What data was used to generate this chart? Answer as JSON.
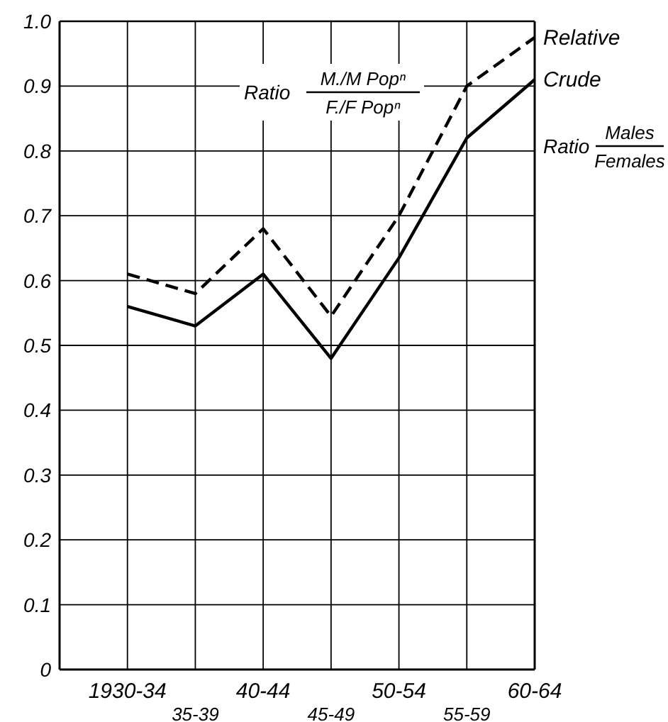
{
  "chart_data": {
    "type": "line",
    "categories": [
      "1930-34",
      "35-39",
      "40-44",
      "45-49",
      "50-54",
      "55-59",
      "60-64"
    ],
    "series": [
      {
        "name": "Relative",
        "color": "#000000",
        "line_style": "dashed",
        "values": [
          0.61,
          0.58,
          0.68,
          0.545,
          0.7,
          0.9,
          0.975
        ]
      },
      {
        "name": "Crude",
        "color": "#000000",
        "line_style": "solid",
        "values": [
          0.56,
          0.53,
          0.61,
          0.48,
          0.635,
          0.82,
          0.91
        ]
      }
    ],
    "ylim": [
      0,
      1
    ],
    "yticks": [
      0,
      0.1,
      0.2,
      0.3,
      0.4,
      0.5,
      0.6,
      0.7,
      0.8,
      0.9,
      {
        "value": 1,
        "label": "1.0"
      }
    ],
    "grid": true,
    "marker": "none",
    "annotations": [
      "Ratio",
      "M./M Popⁿ",
      "F./F Popⁿ",
      "Ratio",
      "Males",
      "Females"
    ]
  }
}
